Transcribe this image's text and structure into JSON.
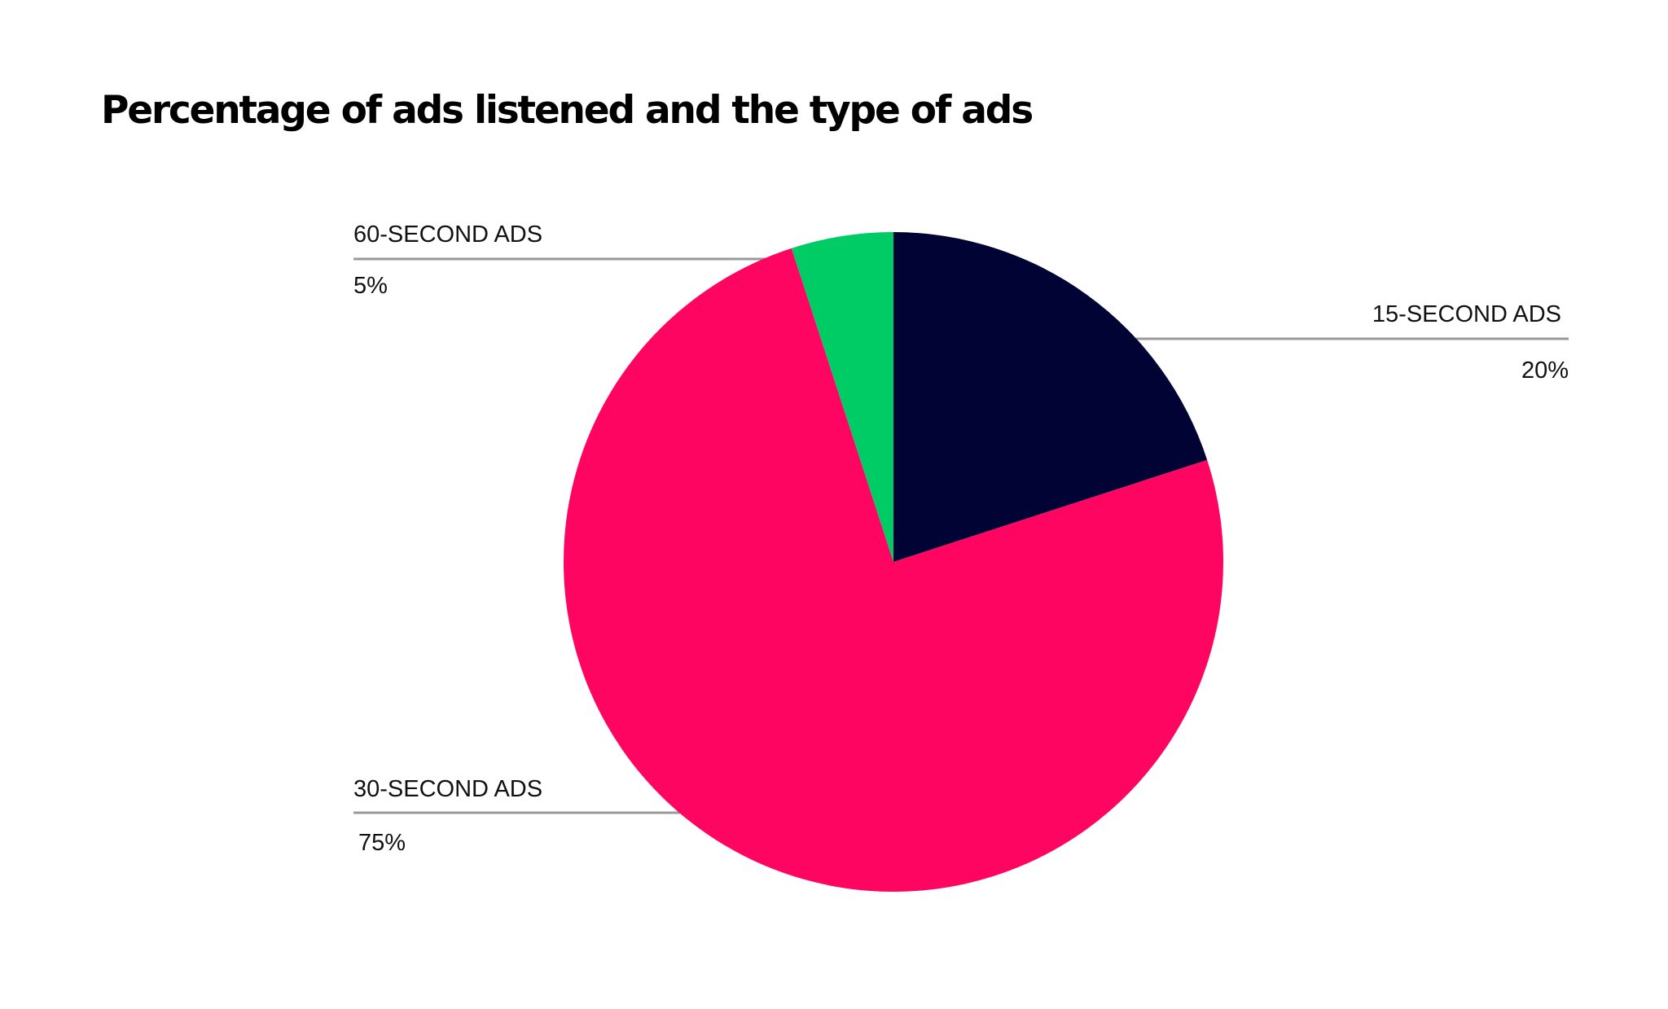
{
  "chart_data": {
    "type": "pie",
    "title": "Percentage of ads listened and the type of ads",
    "slices": [
      {
        "label": "15-SECOND ADS",
        "value": 20,
        "value_label": "20%",
        "color": "#000333"
      },
      {
        "label": "30-SECOND ADS",
        "value": 75,
        "value_label": "75%",
        "color": "#FF0562"
      },
      {
        "label": "60-SECOND ADS",
        "value": 5,
        "value_label": "5%",
        "color": "#00CC66"
      }
    ],
    "legend": "none",
    "leader_line_color": "#9a9a9a"
  }
}
